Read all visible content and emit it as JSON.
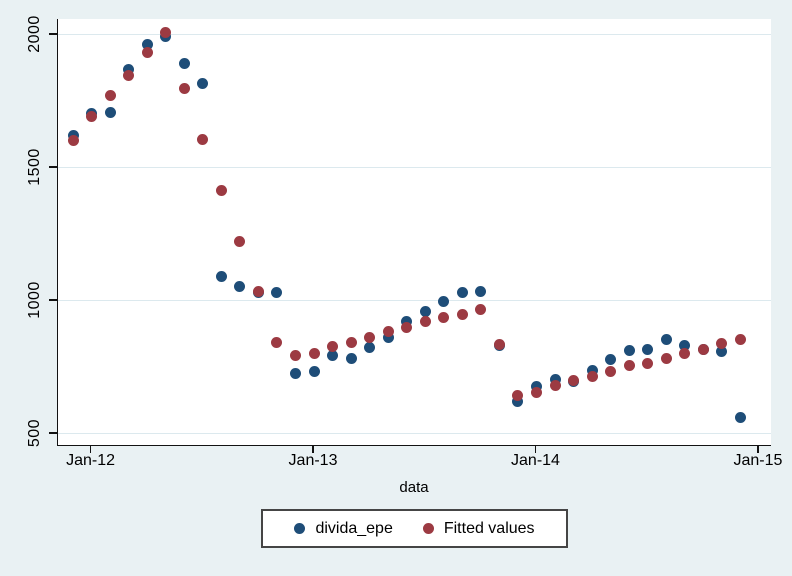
{
  "axes": {
    "x_title": "data",
    "y_tick_labels": [
      "500",
      "1000",
      "1500",
      "2000"
    ],
    "y_tick_values": [
      500,
      1000,
      1500,
      2000
    ],
    "x_tick_labels": [
      "Jan-12",
      "Jan-13",
      "Jan-14",
      "Jan-15"
    ],
    "x_tick_month_index": [
      1,
      13,
      25,
      37
    ]
  },
  "legend": {
    "items": [
      {
        "label": "divida_epe",
        "color": "#1e4d78"
      },
      {
        "label": "Fitted values",
        "color": "#9c3a42"
      }
    ]
  },
  "colors": {
    "background": "#e9f1f3",
    "plot_background": "#ffffff",
    "gridline": "#dce9ee",
    "axis_line": "#121212",
    "series_blue": "#1e4d78",
    "series_red": "#9c3a42"
  },
  "chart_data": {
    "type": "scatter",
    "title": "",
    "xlabel": "data",
    "ylabel": "",
    "ylim": [
      500,
      2000
    ],
    "grid": "horizontal",
    "legend_position": "bottom-center",
    "x": [
      "Dec-11",
      "Jan-12",
      "Feb-12",
      "Mar-12",
      "Apr-12",
      "May-12",
      "Jun-12",
      "Jul-12",
      "Aug-12",
      "Sep-12",
      "Oct-12",
      "Nov-12",
      "Dec-12",
      "Jan-13",
      "Feb-13",
      "Mar-13",
      "Apr-13",
      "May-13",
      "Jun-13",
      "Jul-13",
      "Aug-13",
      "Sep-13",
      "Oct-13",
      "Nov-13",
      "Dec-13",
      "Jan-14",
      "Feb-14",
      "Mar-14",
      "Apr-14",
      "May-14",
      "Jun-14",
      "Jul-14",
      "Aug-14",
      "Sep-14",
      "Oct-14",
      "Nov-14",
      "Dec-14"
    ],
    "series": [
      {
        "name": "divida_epe",
        "color": "#1e4d78",
        "values": [
          1620,
          1700,
          1705,
          1865,
          1960,
          1990,
          1890,
          1815,
          1090,
          1050,
          1030,
          1030,
          725,
          730,
          790,
          780,
          820,
          858,
          920,
          958,
          995,
          1028,
          1033,
          830,
          618,
          673,
          700,
          695,
          735,
          775,
          810,
          815,
          850,
          830,
          813,
          805,
          560
        ]
      },
      {
        "name": "Fitted values",
        "color": "#9c3a42",
        "values": [
          1600,
          1690,
          1770,
          1845,
          1930,
          2005,
          1795,
          1605,
          1410,
          1220,
          1032,
          840,
          790,
          800,
          825,
          840,
          858,
          880,
          895,
          918,
          935,
          945,
          963,
          833,
          640,
          652,
          678,
          697,
          712,
          732,
          754,
          760,
          780,
          800,
          815,
          838,
          850
        ]
      }
    ]
  }
}
